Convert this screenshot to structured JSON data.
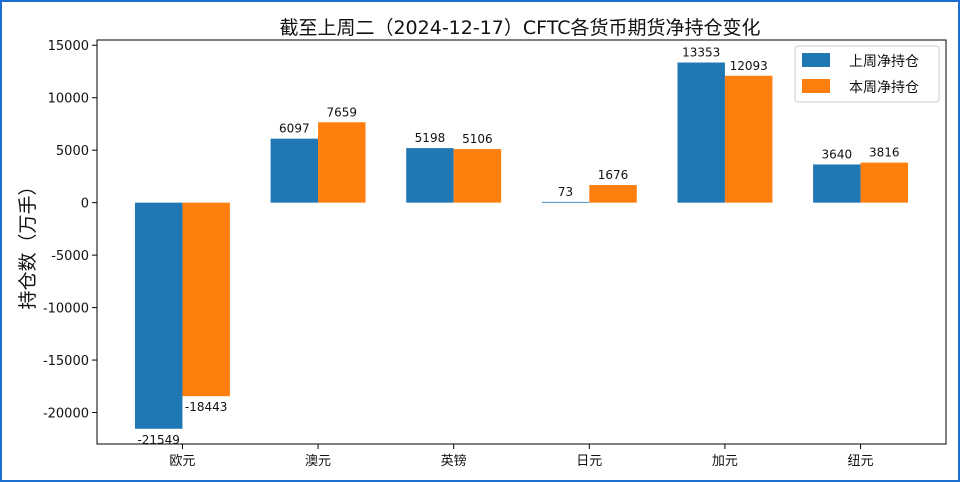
{
  "chart_data": {
    "type": "bar",
    "title": "截至上周二（2024-12-17）CFTC各货币期货净持仓变化",
    "xlabel": "",
    "ylabel": "持仓数（万手）",
    "categories": [
      "欧元",
      "澳元",
      "英镑",
      "日元",
      "加元",
      "纽元"
    ],
    "series": [
      {
        "name": "上周净持仓",
        "color": "#1f77b4",
        "values": [
          -21549,
          6097,
          5198,
          73,
          13353,
          3640
        ]
      },
      {
        "name": "本周净持仓",
        "color": "#ff7f0e",
        "values": [
          -18443,
          7659,
          5106,
          1676,
          12093,
          3816
        ]
      }
    ],
    "ylim": [
      -23000,
      15500
    ],
    "yticks": [
      15000,
      10000,
      5000,
      0,
      -5000,
      -10000,
      -15000,
      -20000
    ],
    "grid": false,
    "legend_position": "top-right"
  }
}
